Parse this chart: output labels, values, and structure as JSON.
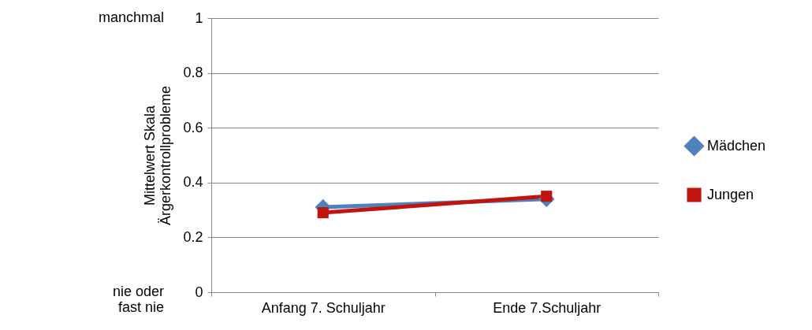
{
  "chart_data": {
    "type": "line",
    "ylabel": "Mittelwert Skala\nÄrgerkontrollprobleme",
    "categories": [
      "Anfang 7. Schuljahr",
      "Ende 7.Schuljahr"
    ],
    "series": [
      {
        "name": "Mädchen",
        "color": "#4f81bd",
        "values": [
          0.31,
          0.34
        ],
        "marker": "diamond"
      },
      {
        "name": "Jungen",
        "color": "#c0150f",
        "values": [
          0.29,
          0.35
        ],
        "marker": "square"
      }
    ],
    "ylim": [
      0,
      1
    ],
    "yticks": [
      0,
      0.2,
      0.4,
      0.6,
      0.8,
      1
    ],
    "annotations": [
      "manchmal",
      "nie oder\nfast nie"
    ],
    "grid": "y",
    "legend": "right"
  }
}
